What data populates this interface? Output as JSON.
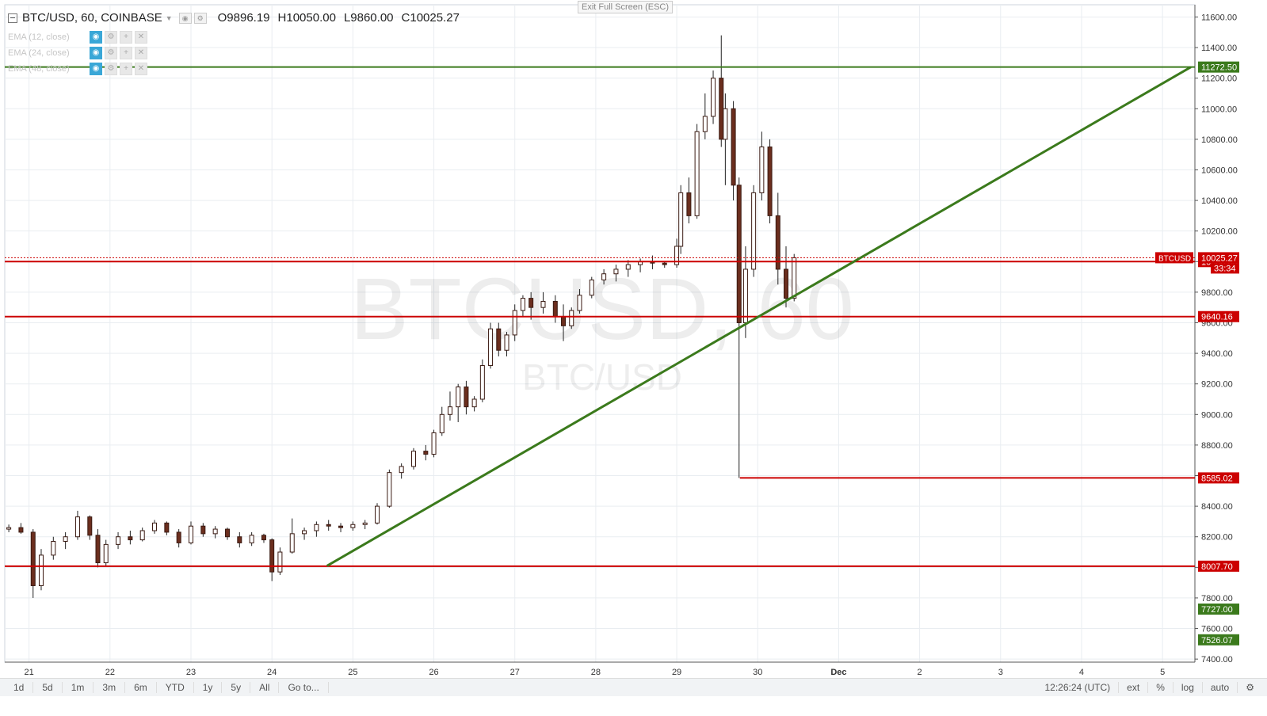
{
  "window": {
    "exit_fullscreen_label": "Exit Full Screen (ESC)"
  },
  "legend": {
    "symbol": "BTC/USD, 60, COINBASE",
    "open": "O9896.19",
    "high": "H10050.00",
    "low": "L9860.00",
    "close": "C10025.27"
  },
  "indicators": [
    {
      "label": "EMA (12, close)"
    },
    {
      "label": "EMA (24, close)"
    },
    {
      "label": "EMA (48, close)"
    }
  ],
  "watermark": {
    "main": "BTCUSD, 60",
    "sub": "BTC/USD"
  },
  "bottom_toolbar": {
    "ranges": [
      "1d",
      "5d",
      "1m",
      "3m",
      "6m",
      "YTD",
      "1y",
      "5y",
      "All",
      "Go to..."
    ],
    "clock": "12:26:24 (UTC)",
    "options": [
      "ext",
      "%",
      "log",
      "auto"
    ],
    "settings_icon": "gear-icon"
  },
  "colors": {
    "grid": "#e9edf1",
    "axis": "#555555",
    "support_resistance": "#cc0000",
    "trend": "#3b7a1c",
    "candle_up": "#ffffff",
    "candle_down": "#6b2e1e",
    "wick": "#222222"
  },
  "chart_data": {
    "type": "candlestick",
    "title": "BTC/USD, 60, COINBASE",
    "x_ticks": [
      "21",
      "22",
      "23",
      "24",
      "25",
      "26",
      "27",
      "28",
      "29",
      "30",
      "Dec",
      "2",
      "3",
      "4",
      "5"
    ],
    "y_ticks": [
      7400,
      7600,
      7800,
      8000,
      8200,
      8400,
      8600,
      8800,
      9000,
      9200,
      9400,
      9600,
      9800,
      10000,
      10200,
      10400,
      10600,
      10800,
      11000,
      11200,
      11400,
      11600
    ],
    "y_tick_labels": [
      "7400.00",
      "7600.00",
      "7800.00",
      "8000.00",
      "8200.00",
      "8400.00",
      "8600.00",
      "8800.00",
      "9000.00",
      "9200.00",
      "9400.00",
      "9600.00",
      "9800.00",
      "10000.00",
      "10200.00",
      "10400.00",
      "10600.00",
      "10800.00",
      "11000.00",
      "11200.00",
      "11400.00",
      "11600.00"
    ],
    "ylim": [
      7380,
      11680
    ],
    "xlim": [
      20.7,
      35.4
    ],
    "horizontal_lines": [
      {
        "value": 11272.5,
        "label": "11272.50",
        "color": "green",
        "from_day": 20.7
      },
      {
        "value": 10000.0,
        "label": "10000.00",
        "color": "red",
        "from_day": 20.7
      },
      {
        "value": 9640.16,
        "label": "9640.16",
        "color": "red",
        "from_day": 20.7
      },
      {
        "value": 8585.02,
        "label": "8585.02",
        "color": "red",
        "from_day": 29.78
      },
      {
        "value": 8007.7,
        "label": "8007.70",
        "color": "red",
        "from_day": 20.7
      }
    ],
    "price_line": {
      "value": 10025.27,
      "symbol_label": "BTCUSD",
      "label": "10025.27",
      "countdown": "33:34"
    },
    "extra_axis_labels": [
      {
        "value": 7727.0,
        "label": "7727.00"
      },
      {
        "value": 7526.07,
        "label": "7526.07"
      }
    ],
    "trendline": {
      "x1": 24.68,
      "y1": 8010,
      "x2": 35.35,
      "y2": 11272.5
    },
    "candles": [
      [
        20.75,
        8250,
        8280,
        8230,
        8260
      ],
      [
        20.9,
        8260,
        8290,
        8220,
        8230
      ],
      [
        21.05,
        8230,
        8250,
        7800,
        7880
      ],
      [
        21.15,
        7880,
        8120,
        7850,
        8080
      ],
      [
        21.3,
        8080,
        8200,
        8050,
        8170
      ],
      [
        21.45,
        8170,
        8230,
        8120,
        8200
      ],
      [
        21.6,
        8200,
        8370,
        8180,
        8330
      ],
      [
        21.75,
        8330,
        8340,
        8180,
        8210
      ],
      [
        21.85,
        8210,
        8250,
        8000,
        8030
      ],
      [
        21.95,
        8030,
        8180,
        8010,
        8150
      ],
      [
        22.1,
        8150,
        8230,
        8120,
        8200
      ],
      [
        22.25,
        8200,
        8240,
        8150,
        8180
      ],
      [
        22.4,
        8180,
        8260,
        8170,
        8240
      ],
      [
        22.55,
        8240,
        8310,
        8220,
        8290
      ],
      [
        22.7,
        8290,
        8300,
        8210,
        8230
      ],
      [
        22.85,
        8230,
        8250,
        8130,
        8160
      ],
      [
        23.0,
        8160,
        8300,
        8150,
        8270
      ],
      [
        23.15,
        8270,
        8290,
        8200,
        8220
      ],
      [
        23.3,
        8220,
        8270,
        8190,
        8250
      ],
      [
        23.45,
        8250,
        8260,
        8180,
        8200
      ],
      [
        23.6,
        8200,
        8230,
        8130,
        8160
      ],
      [
        23.75,
        8160,
        8230,
        8140,
        8210
      ],
      [
        23.9,
        8210,
        8220,
        8160,
        8180
      ],
      [
        24.0,
        8180,
        8190,
        7910,
        7970
      ],
      [
        24.1,
        7970,
        8130,
        7950,
        8100
      ],
      [
        24.25,
        8100,
        8320,
        8090,
        8220
      ],
      [
        24.4,
        8220,
        8260,
        8180,
        8240
      ],
      [
        24.55,
        8240,
        8300,
        8200,
        8280
      ],
      [
        24.7,
        8280,
        8310,
        8240,
        8270
      ],
      [
        24.85,
        8270,
        8290,
        8230,
        8260
      ],
      [
        25.0,
        8260,
        8300,
        8240,
        8280
      ],
      [
        25.15,
        8280,
        8310,
        8250,
        8290
      ],
      [
        25.3,
        8290,
        8420,
        8280,
        8400
      ],
      [
        25.45,
        8400,
        8640,
        8390,
        8620
      ],
      [
        25.6,
        8620,
        8680,
        8580,
        8660
      ],
      [
        25.75,
        8660,
        8780,
        8640,
        8760
      ],
      [
        25.9,
        8760,
        8800,
        8700,
        8740
      ],
      [
        26.0,
        8740,
        8900,
        8720,
        8880
      ],
      [
        26.1,
        8880,
        9050,
        8860,
        9000
      ],
      [
        26.2,
        9000,
        9150,
        8960,
        9050
      ],
      [
        26.3,
        9050,
        9200,
        8950,
        9180
      ],
      [
        26.4,
        9180,
        9220,
        9000,
        9050
      ],
      [
        26.5,
        9050,
        9120,
        9020,
        9100
      ],
      [
        26.6,
        9100,
        9360,
        9080,
        9320
      ],
      [
        26.7,
        9320,
        9600,
        9300,
        9560
      ],
      [
        26.8,
        9560,
        9600,
        9380,
        9420
      ],
      [
        26.9,
        9420,
        9540,
        9380,
        9520
      ],
      [
        27.0,
        9520,
        9720,
        9480,
        9680
      ],
      [
        27.1,
        9680,
        9780,
        9640,
        9760
      ],
      [
        27.2,
        9760,
        9800,
        9620,
        9700
      ],
      [
        27.35,
        9700,
        9800,
        9660,
        9740
      ],
      [
        27.5,
        9740,
        9780,
        9600,
        9640
      ],
      [
        27.6,
        9640,
        9720,
        9480,
        9580
      ],
      [
        27.7,
        9580,
        9700,
        9560,
        9680
      ],
      [
        27.8,
        9680,
        9820,
        9660,
        9780
      ],
      [
        27.95,
        9780,
        9900,
        9760,
        9880
      ],
      [
        28.1,
        9880,
        9950,
        9850,
        9920
      ],
      [
        28.25,
        9920,
        9980,
        9870,
        9950
      ],
      [
        28.4,
        9950,
        10010,
        9900,
        9980
      ],
      [
        28.55,
        9980,
        10020,
        9930,
        10000
      ],
      [
        28.7,
        10000,
        10040,
        9950,
        9990
      ],
      [
        28.85,
        9990,
        10000,
        9960,
        9980
      ],
      [
        29.0,
        9980,
        10150,
        9960,
        10100
      ],
      [
        29.05,
        10100,
        10500,
        10050,
        10450
      ],
      [
        29.15,
        10450,
        10550,
        10250,
        10300
      ],
      [
        29.25,
        10300,
        10900,
        10280,
        10850
      ],
      [
        29.35,
        10850,
        11100,
        10800,
        10950
      ],
      [
        29.45,
        10950,
        11250,
        10900,
        11200
      ],
      [
        29.55,
        11200,
        11480,
        10750,
        10800
      ],
      [
        29.6,
        10800,
        11100,
        10500,
        11000
      ],
      [
        29.7,
        11000,
        11050,
        10400,
        10500
      ],
      [
        29.77,
        10500,
        10550,
        8585,
        9600
      ],
      [
        29.85,
        9600,
        10100,
        9500,
        9950
      ],
      [
        29.95,
        9950,
        10500,
        9900,
        10450
      ],
      [
        30.05,
        10450,
        10850,
        10400,
        10750
      ],
      [
        30.15,
        10750,
        10800,
        10250,
        10300
      ],
      [
        30.25,
        10300,
        10450,
        9850,
        9950
      ],
      [
        30.35,
        9950,
        10100,
        9700,
        9760
      ],
      [
        30.45,
        9760,
        10050,
        9740,
        10025
      ]
    ]
  }
}
